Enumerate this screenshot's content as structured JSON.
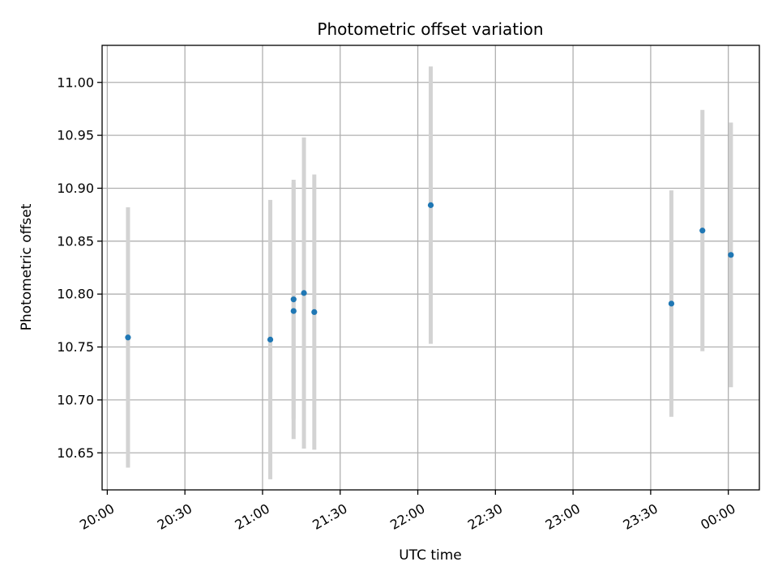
{
  "chart_data": {
    "type": "scatter",
    "title": "Photometric offset variation",
    "xlabel": "UTC time",
    "ylabel": "Photometric offset",
    "grid": true,
    "x_ticks": [
      "20:00",
      "20:30",
      "21:00",
      "21:30",
      "22:00",
      "22:30",
      "23:00",
      "23:30",
      "00:00"
    ],
    "y_ticks": [
      "10.65",
      "10.70",
      "10.75",
      "10.80",
      "10.85",
      "10.90",
      "10.95",
      "11.00"
    ],
    "xlim": [
      "19:58",
      "00:12"
    ],
    "ylim": [
      10.615,
      11.035
    ],
    "point_color": "#1f77b4",
    "errorbar_color": "#d3d3d3",
    "points": [
      {
        "x": "20:08",
        "y": 10.759,
        "yerr": 0.123
      },
      {
        "x": "21:03",
        "y": 10.757,
        "yerr": 0.132
      },
      {
        "x": "21:12",
        "y": 10.795,
        "yerr": 0.113
      },
      {
        "x": "21:12",
        "y": 10.784,
        "yerr": 0.121
      },
      {
        "x": "21:16",
        "y": 10.801,
        "yerr": 0.147
      },
      {
        "x": "21:20",
        "y": 10.783,
        "yerr": 0.13
      },
      {
        "x": "22:05",
        "y": 10.884,
        "yerr": 0.131
      },
      {
        "x": "23:38",
        "y": 10.791,
        "yerr": 0.107
      },
      {
        "x": "23:50",
        "y": 10.86,
        "yerr": 0.114
      },
      {
        "x": "00:01",
        "y": 10.837,
        "yerr": 0.125
      }
    ]
  }
}
